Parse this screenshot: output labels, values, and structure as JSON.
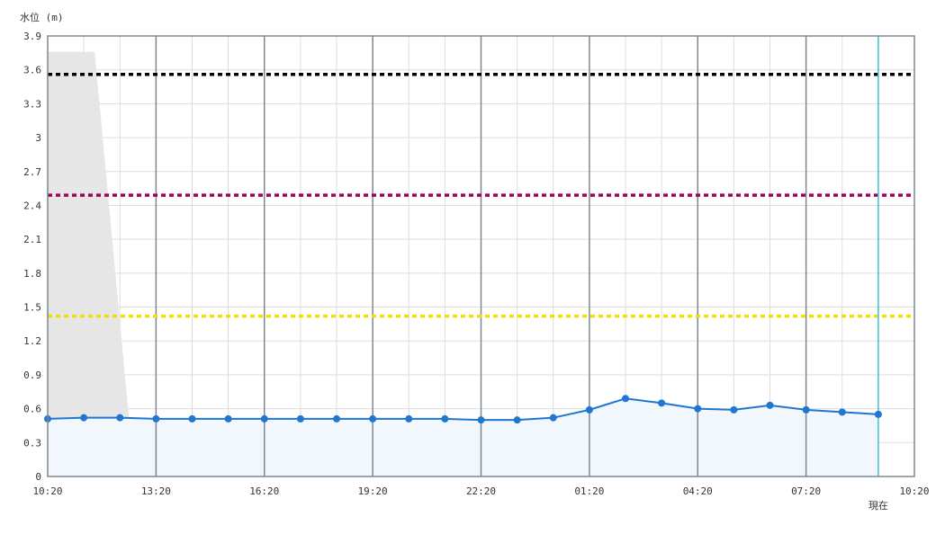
{
  "chart_data": {
    "type": "line",
    "ylabel": "水位 (m)",
    "ylim": [
      0,
      3.9
    ],
    "y_ticks": [
      "0",
      "0.3",
      "0.6",
      "0.9",
      "1.2",
      "1.5",
      "1.8",
      "2.1",
      "2.4",
      "2.7",
      "3",
      "3.3",
      "3.6",
      "3.9"
    ],
    "x_ticks": [
      "10:20",
      "13:20",
      "16:20",
      "19:20",
      "22:20",
      "01:20",
      "04:20",
      "07:20",
      "10:20"
    ],
    "x_range_hours": [
      0,
      24
    ],
    "now_label": "現在",
    "now_x_hours": 23,
    "grid": true,
    "series": [
      {
        "color": "#1f77d0",
        "x_hours": [
          0,
          1,
          2,
          3,
          4,
          5,
          6,
          7,
          8,
          9,
          10,
          11,
          12,
          13,
          14,
          15,
          16,
          17,
          18,
          19,
          20,
          21,
          22,
          23
        ],
        "values": [
          0.51,
          0.52,
          0.52,
          0.51,
          0.51,
          0.51,
          0.51,
          0.51,
          0.51,
          0.51,
          0.51,
          0.51,
          0.5,
          0.5,
          0.52,
          0.59,
          0.69,
          0.65,
          0.6,
          0.59,
          0.63,
          0.59,
          0.57,
          0.55
        ]
      }
    ],
    "reference_lines": [
      {
        "value": 3.56,
        "color": "#000000"
      },
      {
        "value": 2.49,
        "color": "#a0005a"
      },
      {
        "value": 1.42,
        "color": "#f0e000"
      }
    ],
    "shaded_region": {
      "color": "#e6e6e6",
      "top_value": 3.76,
      "x_top_end_hours": 1.3,
      "x_bottom_end_hours": 2.4
    },
    "area_fill_color": "#f2f7fd"
  }
}
